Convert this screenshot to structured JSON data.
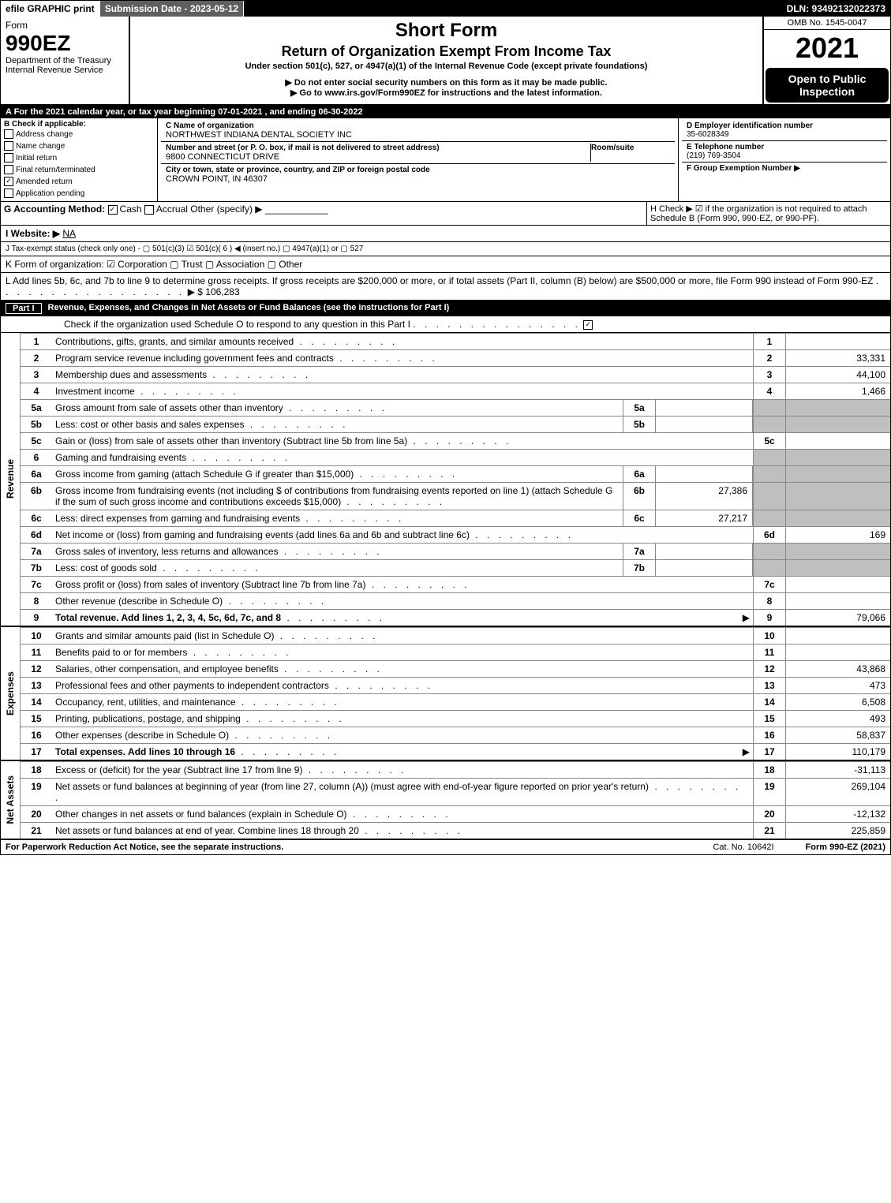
{
  "topbar": {
    "efile": "efile GRAPHIC print",
    "sub_label": "Submission Date - 2023-05-12",
    "dln": "DLN: 93492132022373"
  },
  "header": {
    "form_word": "Form",
    "form_num": "990EZ",
    "dept": "Department of the Treasury",
    "irs": "Internal Revenue Service",
    "title": "Short Form",
    "subtitle": "Return of Organization Exempt From Income Tax",
    "under": "Under section 501(c), 527, or 4947(a)(1) of the Internal Revenue Code (except private foundations)",
    "arrow1": "▶ Do not enter social security numbers on this form as it may be made public.",
    "arrow2": "▶ Go to www.irs.gov/Form990EZ for instructions and the latest information.",
    "omb": "OMB No. 1545-0047",
    "year": "2021",
    "open": "Open to Public Inspection"
  },
  "A": "A  For the 2021 calendar year, or tax year beginning 07-01-2021 , and ending 06-30-2022",
  "B": {
    "label": "B  Check if applicable:",
    "opts": [
      "Address change",
      "Name change",
      "Initial return",
      "Final return/terminated",
      "Amended return",
      "Application pending"
    ],
    "checked": [
      false,
      false,
      false,
      false,
      true,
      false
    ]
  },
  "C": {
    "name_lbl": "C Name of organization",
    "name": "NORTHWEST INDIANA DENTAL SOCIETY INC",
    "street_lbl": "Number and street (or P. O. box, if mail is not delivered to street address)",
    "room_lbl": "Room/suite",
    "street": "9800 CONNECTICUT DRIVE",
    "city_lbl": "City or town, state or province, country, and ZIP or foreign postal code",
    "city": "CROWN POINT, IN  46307"
  },
  "D": {
    "ein_lbl": "D Employer identification number",
    "ein": "35-6028349",
    "tel_lbl": "E Telephone number",
    "tel": "(219) 769-3504",
    "grp_lbl": "F Group Exemption Number  ▶"
  },
  "G": {
    "label": "G Accounting Method:",
    "cash": "Cash",
    "accrual": "Accrual",
    "other": "Other (specify) ▶"
  },
  "H": "H   Check ▶ ☑ if the organization is not required to attach Schedule B (Form 990, 990-EZ, or 990-PF).",
  "I": {
    "label": "I Website: ▶",
    "val": "NA"
  },
  "J": "J Tax-exempt status (check only one) - ▢ 501(c)(3) ☑ 501(c)( 6 ) ◀ (insert no.) ▢ 4947(a)(1) or ▢ 527",
  "K": "K Form of organization: ☑ Corporation  ▢ Trust  ▢ Association  ▢ Other",
  "L": {
    "text": "L Add lines 5b, 6c, and 7b to line 9 to determine gross receipts. If gross receipts are $200,000 or more, or if total assets (Part II, column (B) below) are $500,000 or more, file Form 990 instead of Form 990-EZ",
    "amount": "▶ $ 106,283"
  },
  "part1": {
    "label": "Part I",
    "title": "Revenue, Expenses, and Changes in Net Assets or Fund Balances (see the instructions for Part I)",
    "check": "Check if the organization used Schedule O to respond to any question in this Part I"
  },
  "lines": {
    "1": {
      "d": "Contributions, gifts, grants, and similar amounts received",
      "r": "1",
      "v": ""
    },
    "2": {
      "d": "Program service revenue including government fees and contracts",
      "r": "2",
      "v": "33,331"
    },
    "3": {
      "d": "Membership dues and assessments",
      "r": "3",
      "v": "44,100"
    },
    "4": {
      "d": "Investment income",
      "r": "4",
      "v": "1,466"
    },
    "5a": {
      "d": "Gross amount from sale of assets other than inventory",
      "sb": "5a",
      "sv": ""
    },
    "5b": {
      "d": "Less: cost or other basis and sales expenses",
      "sb": "5b",
      "sv": ""
    },
    "5c": {
      "d": "Gain or (loss) from sale of assets other than inventory (Subtract line 5b from line 5a)",
      "r": "5c",
      "v": ""
    },
    "6": {
      "d": "Gaming and fundraising events"
    },
    "6a": {
      "d": "Gross income from gaming (attach Schedule G if greater than $15,000)",
      "sb": "6a",
      "sv": ""
    },
    "6b": {
      "d": "Gross income from fundraising events (not including $                      of contributions from fundraising events reported on line 1) (attach Schedule G if the sum of such gross income and contributions exceeds $15,000)",
      "sb": "6b",
      "sv": "27,386"
    },
    "6c": {
      "d": "Less: direct expenses from gaming and fundraising events",
      "sb": "6c",
      "sv": "27,217"
    },
    "6d": {
      "d": "Net income or (loss) from gaming and fundraising events (add lines 6a and 6b and subtract line 6c)",
      "r": "6d",
      "v": "169"
    },
    "7a": {
      "d": "Gross sales of inventory, less returns and allowances",
      "sb": "7a",
      "sv": ""
    },
    "7b": {
      "d": "Less: cost of goods sold",
      "sb": "7b",
      "sv": ""
    },
    "7c": {
      "d": "Gross profit or (loss) from sales of inventory (Subtract line 7b from line 7a)",
      "r": "7c",
      "v": ""
    },
    "8": {
      "d": "Other revenue (describe in Schedule O)",
      "r": "8",
      "v": ""
    },
    "9": {
      "d": "Total revenue. Add lines 1, 2, 3, 4, 5c, 6d, 7c, and 8",
      "r": "9",
      "v": "79,066",
      "bold": true,
      "arrow": true
    },
    "10": {
      "d": "Grants and similar amounts paid (list in Schedule O)",
      "r": "10",
      "v": ""
    },
    "11": {
      "d": "Benefits paid to or for members",
      "r": "11",
      "v": ""
    },
    "12": {
      "d": "Salaries, other compensation, and employee benefits",
      "r": "12",
      "v": "43,868"
    },
    "13": {
      "d": "Professional fees and other payments to independent contractors",
      "r": "13",
      "v": "473"
    },
    "14": {
      "d": "Occupancy, rent, utilities, and maintenance",
      "r": "14",
      "v": "6,508"
    },
    "15": {
      "d": "Printing, publications, postage, and shipping",
      "r": "15",
      "v": "493"
    },
    "16": {
      "d": "Other expenses (describe in Schedule O)",
      "r": "16",
      "v": "58,837"
    },
    "17": {
      "d": "Total expenses. Add lines 10 through 16",
      "r": "17",
      "v": "110,179",
      "bold": true,
      "arrow": true
    },
    "18": {
      "d": "Excess or (deficit) for the year (Subtract line 17 from line 9)",
      "r": "18",
      "v": "-31,113"
    },
    "19": {
      "d": "Net assets or fund balances at beginning of year (from line 27, column (A)) (must agree with end-of-year figure reported on prior year's return)",
      "r": "19",
      "v": "269,104"
    },
    "20": {
      "d": "Other changes in net assets or fund balances (explain in Schedule O)",
      "r": "20",
      "v": "-12,132"
    },
    "21": {
      "d": "Net assets or fund balances at end of year. Combine lines 18 through 20",
      "r": "21",
      "v": "225,859"
    }
  },
  "vlabels": {
    "rev": "Revenue",
    "exp": "Expenses",
    "na": "Net Assets"
  },
  "footer": {
    "left": "For Paperwork Reduction Act Notice, see the separate instructions.",
    "mid": "Cat. No. 10642I",
    "right": "Form 990-EZ (2021)"
  }
}
